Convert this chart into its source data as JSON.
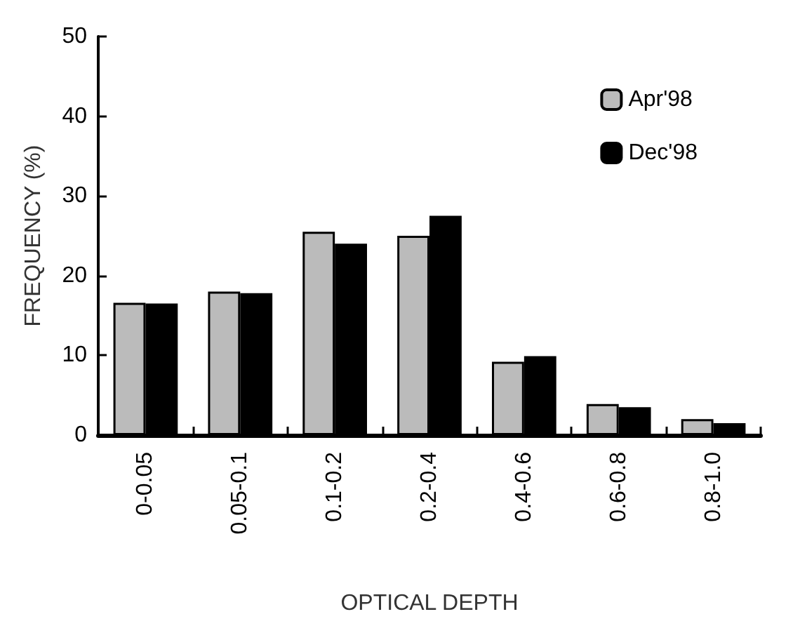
{
  "chart_data": {
    "type": "bar",
    "xlabel": "OPTICAL DEPTH",
    "ylabel": "FREQUENCY (%)",
    "categories": [
      "0-0.05",
      "0.05-0.1",
      "0.1-0.2",
      "0.2-0.4",
      "0.4-0.6",
      "0.6-0.8",
      "0.8-1.0"
    ],
    "series": [
      {
        "name": "Apr'98",
        "color": "#bbbbbb",
        "values": [
          16.6,
          18.0,
          25.5,
          25.0,
          9.2,
          3.9,
          2.0
        ]
      },
      {
        "name": "Dec'98",
        "color": "#000000",
        "values": [
          16.5,
          17.8,
          24.0,
          27.5,
          9.9,
          3.5,
          1.5
        ]
      }
    ],
    "ylim": [
      0,
      50
    ],
    "yticks": [
      0,
      10,
      20,
      30,
      40,
      50
    ],
    "grid": false,
    "legend": "top right"
  }
}
